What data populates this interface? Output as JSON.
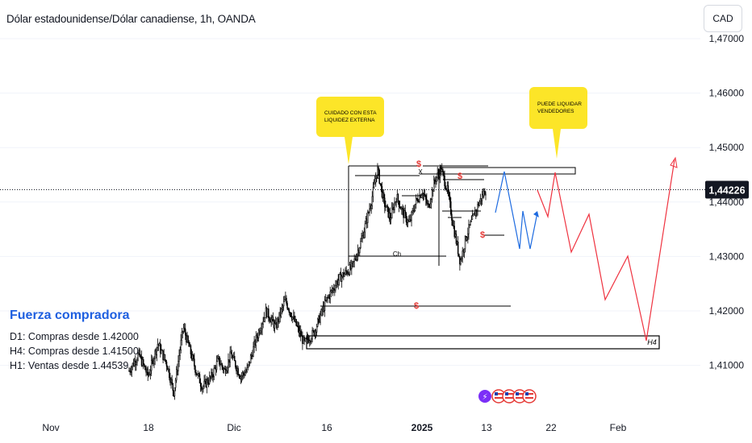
{
  "chart_data": {
    "type": "candlestick",
    "title": "Dólar estadounidense/Dólar canadiense, 1h, OANDA",
    "currency": "CAD",
    "ylim": [
      1.405,
      1.4755
    ],
    "yticks": [
      "1,47000",
      "1,46000",
      "1,45000",
      "1,44000",
      "1,43000",
      "1,42000",
      "1,41000"
    ],
    "ytick_values": [
      1.47,
      1.46,
      1.45,
      1.44,
      1.43,
      1.42,
      1.41
    ],
    "xticks": [
      "Nov",
      "18",
      "Dic",
      "16",
      "2025",
      "13",
      "22",
      "Feb"
    ],
    "current_price": "1,44226",
    "current_value": 1.44226,
    "price_path": [
      [
        0,
        1.409
      ],
      [
        0.03,
        1.412
      ],
      [
        0.06,
        1.408
      ],
      [
        0.09,
        1.414
      ],
      [
        0.12,
        1.41
      ],
      [
        0.14,
        1.405
      ],
      [
        0.17,
        1.417
      ],
      [
        0.19,
        1.413
      ],
      [
        0.21,
        1.409
      ],
      [
        0.23,
        1.406
      ],
      [
        0.26,
        1.408
      ],
      [
        0.28,
        1.411
      ],
      [
        0.3,
        1.409
      ],
      [
        0.32,
        1.412
      ],
      [
        0.35,
        1.408
      ],
      [
        0.37,
        1.409
      ],
      [
        0.4,
        1.415
      ],
      [
        0.43,
        1.42
      ],
      [
        0.46,
        1.417
      ],
      [
        0.49,
        1.422
      ],
      [
        0.52,
        1.418
      ],
      [
        0.55,
        1.414
      ],
      [
        0.58,
        1.416
      ],
      [
        0.62,
        1.422
      ],
      [
        0.66,
        1.426
      ],
      [
        0.7,
        1.428
      ],
      [
        0.73,
        1.433
      ],
      [
        0.76,
        1.44
      ],
      [
        0.78,
        1.446
      ],
      [
        0.8,
        1.44
      ],
      [
        0.82,
        1.437
      ],
      [
        0.84,
        1.441
      ],
      [
        0.86,
        1.438
      ],
      [
        0.88,
        1.436
      ],
      [
        0.9,
        1.44
      ],
      [
        0.92,
        1.442
      ],
      [
        0.94,
        1.439
      ],
      [
        0.96,
        1.444
      ],
      [
        0.98,
        1.446
      ],
      [
        1.0,
        1.442
      ],
      [
        1.02,
        1.435
      ],
      [
        1.04,
        1.429
      ],
      [
        1.06,
        1.434
      ],
      [
        1.08,
        1.437
      ],
      [
        1.1,
        1.44
      ],
      [
        1.12,
        1.4423
      ]
    ],
    "annotations": {
      "callouts": [
        "CUIDADO CON ESTA\nLIQUIDEZ EXTERNA",
        "PUEDE LIQUIDAR\nVENDEDORES"
      ],
      "liquidity_markers": [
        "$",
        "$",
        "$",
        "$"
      ],
      "structure_labels": [
        "X",
        "X",
        "Ch"
      ],
      "zone_label": "H4"
    }
  },
  "info": {
    "heading": "Fuerza compradora",
    "lines": [
      "D1: Compras desde 1.42000",
      "H4: Compras desde 1.41500",
      "H1: Ventas desde 1.44539"
    ]
  },
  "colors": {
    "candles": "#000000",
    "callout": "#fce528",
    "liquidity": "#e53935",
    "blue_path": "#1e6be0",
    "red_path": "#ef3340",
    "price_tag": "#131722"
  }
}
